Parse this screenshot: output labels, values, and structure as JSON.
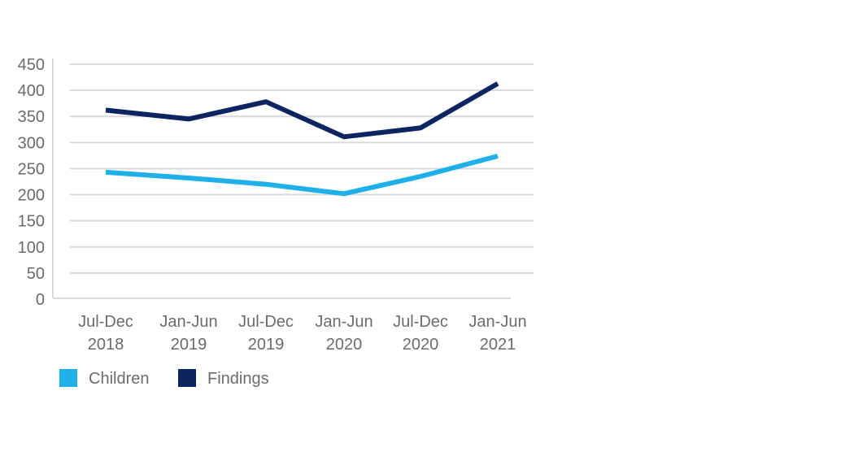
{
  "chart_data": {
    "type": "line",
    "title": "",
    "xlabel": "",
    "ylabel": "",
    "categories": [
      [
        "Jul-Dec",
        "2018"
      ],
      [
        "Jan-Jun",
        "2019"
      ],
      [
        "Jul-Dec",
        "2019"
      ],
      [
        "Jan-Jun",
        "2020"
      ],
      [
        "Jul-Dec",
        "2020"
      ],
      [
        "Jan-Jun",
        "2021"
      ]
    ],
    "ylim": [
      0,
      450
    ],
    "yticks": [
      0,
      50,
      100,
      150,
      200,
      250,
      300,
      350,
      400,
      450
    ],
    "grid": true,
    "legend_position": "bottom-left",
    "series": [
      {
        "name": "Children",
        "color": "#1fb0ea",
        "values": [
          243,
          232,
          220,
          202,
          235,
          274
        ]
      },
      {
        "name": "Findings",
        "color": "#0d2461",
        "values": [
          362,
          345,
          378,
          311,
          328,
          413
        ]
      }
    ]
  }
}
